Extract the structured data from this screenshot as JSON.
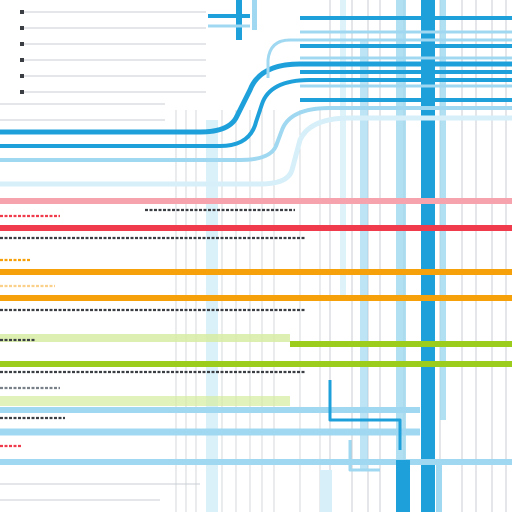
{
  "colors": {
    "background": "#ffffff",
    "blue": "#1ea0db",
    "blue_light": "#9fd8f0",
    "blue_pale": "#d6eff9",
    "red": "#ef3b4c",
    "red_light": "#f7a3ad",
    "orange": "#f6a10a",
    "orange_light": "#fbd08a",
    "green": "#9ccc1c",
    "green_light": "#d6ec9e",
    "gray_line": "#c9ced3",
    "gray_text": "#7a8088",
    "dark_text": "#3b3f44"
  },
  "bands": [
    {
      "name": "band-red",
      "color": "red",
      "rows": 2
    },
    {
      "name": "band-orange",
      "color": "orange",
      "rows": 2
    },
    {
      "name": "band-green",
      "color": "green",
      "rows": 2
    },
    {
      "name": "band-blue",
      "color": "blue",
      "rows": 3
    }
  ]
}
